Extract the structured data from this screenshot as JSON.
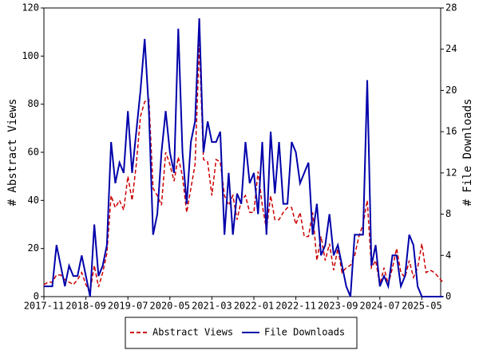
{
  "chart_data": {
    "type": "line",
    "ylabel": "# Abstract Views",
    "y2label": "# File Downloads",
    "x": [
      "2017-11",
      "2017-12",
      "2018-01",
      "2018-02",
      "2018-03",
      "2018-04",
      "2018-05",
      "2018-06",
      "2018-07",
      "2018-08",
      "2018-09",
      "2018-10",
      "2018-11",
      "2018-12",
      "2019-01",
      "2019-02",
      "2019-03",
      "2019-04",
      "2019-05",
      "2019-06",
      "2019-07",
      "2019-08",
      "2019-09",
      "2019-10",
      "2019-11",
      "2019-12",
      "2020-01",
      "2020-02",
      "2020-03",
      "2020-04",
      "2020-05",
      "2020-06",
      "2020-07",
      "2020-08",
      "2020-09",
      "2020-10",
      "2020-11",
      "2020-12",
      "2021-01",
      "2021-02",
      "2021-03",
      "2021-04",
      "2021-05",
      "2021-06",
      "2021-07",
      "2021-08",
      "2021-09",
      "2021-10",
      "2021-11",
      "2021-12",
      "2022-01",
      "2022-02",
      "2022-03",
      "2022-04",
      "2022-05",
      "2022-06",
      "2022-07",
      "2022-08",
      "2022-09",
      "2022-10",
      "2022-11",
      "2022-12",
      "2023-01",
      "2023-02",
      "2023-03",
      "2023-04",
      "2023-05",
      "2023-06",
      "2023-07",
      "2023-08",
      "2023-09",
      "2023-10",
      "2023-11",
      "2023-12",
      "2024-01",
      "2024-02",
      "2024-03",
      "2024-04",
      "2024-05",
      "2024-06",
      "2024-07",
      "2024-08",
      "2024-09",
      "2024-10",
      "2024-11",
      "2024-12",
      "2025-01",
      "2025-02",
      "2025-03",
      "2025-04",
      "2025-05",
      "2025-06",
      "2025-07",
      "2025-08",
      "2025-09",
      "2025-10"
    ],
    "xticks": [
      "2017-11",
      "2018-09",
      "2019-07",
      "2020-05",
      "2021-03",
      "2022-01",
      "2022-11",
      "2023-09",
      "2024-07",
      "2025-05"
    ],
    "ylim": [
      0,
      120
    ],
    "yticks": [
      0,
      20,
      40,
      60,
      80,
      100,
      120
    ],
    "y2lim": [
      0,
      28
    ],
    "y2ticks": [
      0,
      4,
      8,
      12,
      16,
      20,
      24,
      28
    ],
    "series": [
      {
        "name": "Abstract Views",
        "color": "#cc0000",
        "dash": true,
        "values": [
          5,
          6,
          6,
          9,
          9,
          7,
          6,
          5,
          7,
          10,
          5,
          2,
          13,
          4,
          10,
          18,
          42,
          37,
          40,
          36,
          50,
          40,
          55,
          75,
          81,
          82,
          45,
          42,
          38,
          60,
          55,
          48,
          58,
          50,
          35,
          45,
          55,
          105,
          57,
          56,
          42,
          57,
          56,
          42,
          38,
          42,
          32,
          40,
          42,
          35,
          35,
          52,
          38,
          28,
          42,
          32,
          32,
          35,
          37,
          37,
          30,
          35,
          25,
          25,
          35,
          15,
          25,
          15,
          22,
          11,
          20,
          10,
          12,
          13,
          17,
          25,
          30,
          40,
          12,
          15,
          5,
          12,
          5,
          12,
          20,
          10,
          8,
          15,
          8,
          12,
          22,
          10,
          11,
          10,
          8,
          6
        ]
      },
      {
        "name": "File Downloads",
        "color": "#0000aa",
        "dash": false,
        "axis": "y2",
        "values": [
          1,
          1,
          1,
          5,
          3,
          1,
          3,
          2,
          2,
          4,
          2,
          0,
          7,
          2,
          3,
          5,
          15,
          11,
          13,
          12,
          18,
          12,
          16,
          20,
          25,
          18,
          6,
          8,
          14,
          18,
          14,
          12,
          26,
          14,
          9,
          15,
          17,
          27,
          14,
          17,
          15,
          15,
          16,
          6,
          12,
          6,
          10,
          9,
          15,
          11,
          12,
          8,
          15,
          6,
          16,
          10,
          15,
          9,
          9,
          15,
          14,
          11,
          12,
          13,
          6,
          9,
          4,
          5,
          8,
          4,
          5,
          3,
          1,
          0,
          6,
          6,
          6,
          21,
          3,
          5,
          1,
          2,
          1,
          4,
          4,
          1,
          2,
          6,
          5,
          1,
          0,
          0,
          0,
          0,
          0,
          0
        ]
      }
    ]
  }
}
